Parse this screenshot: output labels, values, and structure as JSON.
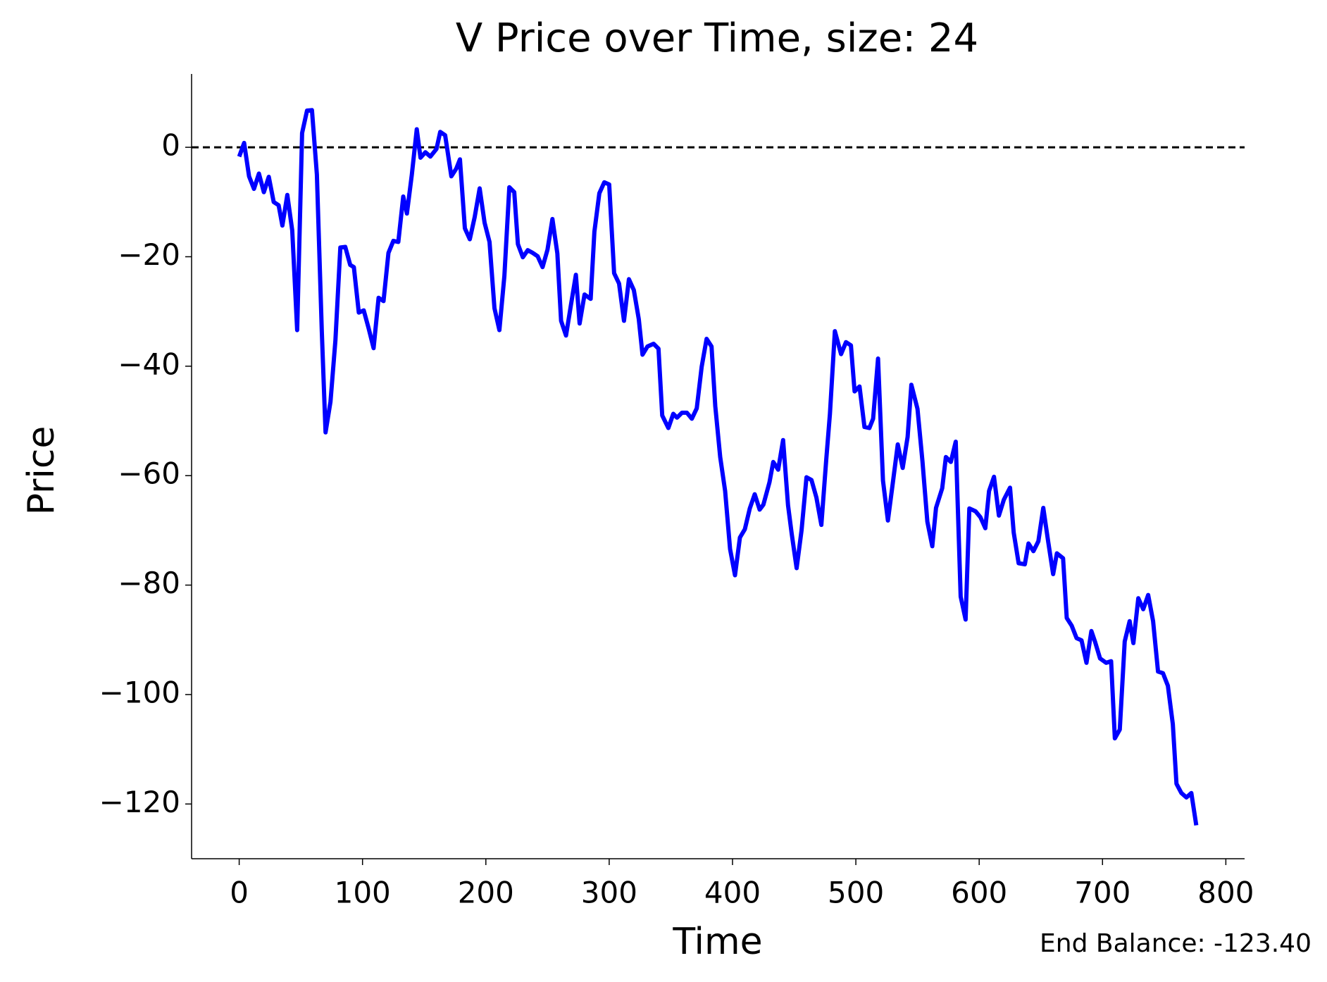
{
  "chart_data": {
    "type": "line",
    "title": "V Price over Time, size: 24",
    "xlabel": "Time",
    "ylabel": "Price",
    "annotation": "End Balance: -123.40",
    "xlim": [
      -38.6,
      815.2
    ],
    "ylim": [
      -130,
      13.4
    ],
    "xticks": [
      0,
      100,
      200,
      300,
      400,
      500,
      600,
      700,
      800
    ],
    "yticks": [
      0,
      {
        "value": -20,
        "label": "−20"
      },
      {
        "value": -40,
        "label": "−40"
      },
      {
        "value": -60,
        "label": "−60"
      },
      {
        "value": -80,
        "label": "−80"
      },
      {
        "value": -100,
        "label": "−100"
      },
      {
        "value": -120,
        "label": "−120"
      }
    ],
    "hline": 0,
    "hline_color": "#000000",
    "x": [
      0,
      4,
      8,
      12,
      16,
      20,
      24,
      28,
      32,
      35,
      39,
      43,
      47,
      51,
      55,
      59,
      63,
      67,
      70,
      74,
      78,
      82,
      86,
      90,
      93,
      97,
      101,
      105,
      109,
      113,
      117,
      121,
      125,
      129,
      133,
      136,
      140,
      144,
      147,
      151,
      155,
      160,
      163,
      167,
      172,
      176,
      179,
      183,
      187,
      191,
      195,
      199,
      203,
      207,
      211,
      215,
      219,
      223,
      226,
      230,
      234,
      238,
      242,
      246,
      250,
      254,
      258,
      261,
      265,
      269,
      273,
      276,
      280,
      285,
      288,
      292,
      296,
      300,
      304,
      308,
      312,
      316,
      320,
      324,
      327,
      331,
      336,
      340,
      343,
      348,
      352,
      355,
      359,
      363,
      367,
      371,
      375,
      379,
      383,
      386,
      390,
      394,
      398,
      402,
      406,
      410,
      414,
      418,
      422,
      425,
      430,
      433,
      437,
      441,
      445,
      448,
      452,
      456,
      460,
      464,
      468,
      472,
      476,
      479,
      483,
      488,
      492,
      496,
      499,
      503,
      507,
      511,
      514,
      518,
      522,
      526,
      530,
      534,
      538,
      542,
      545,
      550,
      554,
      558,
      562,
      565,
      570,
      573,
      577,
      581,
      585,
      589,
      592,
      597,
      601,
      605,
      608,
      612,
      616,
      620,
      625,
      628,
      632,
      637,
      640,
      644,
      648,
      652,
      656,
      660,
      663,
      668,
      671,
      675,
      679,
      683,
      687,
      691,
      694,
      698,
      703,
      707,
      710,
      714,
      718,
      722,
      725,
      729,
      733,
      737,
      741,
      745,
      749,
      753,
      757,
      760,
      764,
      768,
      772,
      776
    ],
    "series": [
      {
        "name": "V",
        "color": "#0000ff",
        "values": [
          -1.7,
          0.8,
          -5.3,
          -7.6,
          -4.8,
          -8.2,
          -5.4,
          -10,
          -10.6,
          -14.3,
          -8.7,
          -15.2,
          -33.4,
          2.6,
          6.7,
          6.8,
          -5,
          -33.7,
          -52.1,
          -46.5,
          -35.3,
          -18.3,
          -18.2,
          -21.5,
          -21.9,
          -30.2,
          -29.8,
          -33.1,
          -36.7,
          -27.5,
          -28.1,
          -19.3,
          -17.1,
          -17.3,
          -9,
          -12.1,
          -5,
          3.3,
          -1.9,
          -0.9,
          -1.7,
          -0.3,
          2.8,
          2.2,
          -5.3,
          -3.9,
          -2.2,
          -14.8,
          -16.8,
          -12.7,
          -7.5,
          -13.8,
          -17.3,
          -29.4,
          -33.4,
          -23.5,
          -7.3,
          -8.2,
          -17.7,
          -20.1,
          -18.8,
          -19.3,
          -19.9,
          -21.9,
          -18.7,
          -13.1,
          -19.4,
          -31.7,
          -34.4,
          -28.8,
          -23.3,
          -32.2,
          -26.9,
          -27.7,
          -15.4,
          -8.4,
          -6.4,
          -6.8,
          -23,
          -24.9,
          -31.7,
          -24.1,
          -26.1,
          -31.4,
          -37.9,
          -36.4,
          -35.9,
          -36.8,
          -49,
          -51.3,
          -48.7,
          -49.4,
          -48.5,
          -48.5,
          -49.6,
          -47.7,
          -40.1,
          -35,
          -36.4,
          -47.3,
          -56.6,
          -62.8,
          -73.4,
          -78.2,
          -71.3,
          -69.8,
          -66,
          -63.4,
          -66.2,
          -65.3,
          -61.2,
          -57.5,
          -58.9,
          -53.5,
          -65.4,
          -70.6,
          -76.9,
          -70,
          -60.3,
          -60.8,
          -64,
          -69,
          -57,
          -48.7,
          -33.6,
          -37.8,
          -35.6,
          -36.2,
          -44.6,
          -43.7,
          -51.1,
          -51.3,
          -49.6,
          -38.6,
          -60.9,
          -68.2,
          -61.3,
          -54.3,
          -58.6,
          -52.9,
          -43.4,
          -47.8,
          -57.3,
          -68.4,
          -72.9,
          -65.9,
          -62.3,
          -56.6,
          -57.5,
          -53.8,
          -82.1,
          -86.3,
          -66,
          -66.5,
          -67.6,
          -69.6,
          -62.8,
          -60.2,
          -67.3,
          -64.4,
          -62.2,
          -70.4,
          -76,
          -76.2,
          -72.4,
          -73.8,
          -72,
          -65.9,
          -72.1,
          -78,
          -74.2,
          -75.1,
          -86,
          -87.4,
          -89.7,
          -90.1,
          -94.2,
          -88.4,
          -90.4,
          -93.4,
          -94.2,
          -93.9,
          -108,
          -106.4,
          -90.3,
          -86.6,
          -90.6,
          -82.4,
          -84.4,
          -81.8,
          -86.6,
          -95.8,
          -96.1,
          -98.4,
          -105.4,
          -116.3,
          -118,
          -118.8,
          -118,
          -123.9
        ]
      }
    ]
  }
}
